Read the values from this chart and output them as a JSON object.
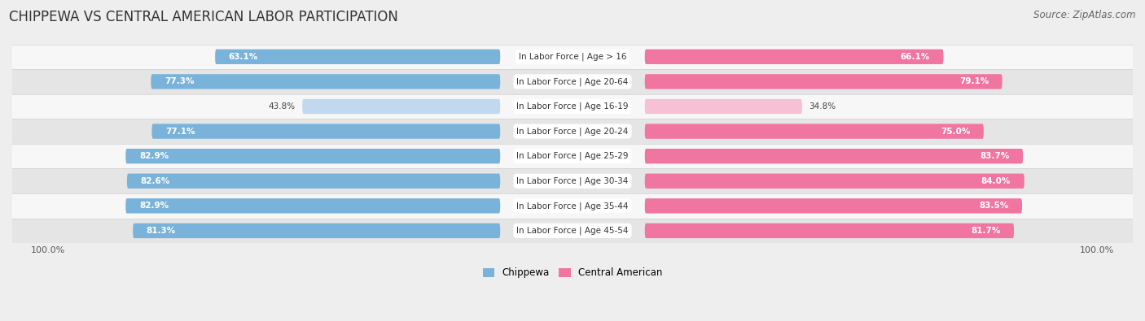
{
  "title": "CHIPPEWA VS CENTRAL AMERICAN LABOR PARTICIPATION",
  "source": "Source: ZipAtlas.com",
  "categories": [
    "In Labor Force | Age > 16",
    "In Labor Force | Age 20-64",
    "In Labor Force | Age 16-19",
    "In Labor Force | Age 20-24",
    "In Labor Force | Age 25-29",
    "In Labor Force | Age 30-34",
    "In Labor Force | Age 35-44",
    "In Labor Force | Age 45-54"
  ],
  "chippewa": [
    63.1,
    77.3,
    43.8,
    77.1,
    82.9,
    82.6,
    82.9,
    81.3
  ],
  "central_american": [
    66.1,
    79.1,
    34.8,
    75.0,
    83.7,
    84.0,
    83.5,
    81.7
  ],
  "chippewa_color": "#7ab3d9",
  "chippewa_color_light": "#c0d9ee",
  "central_american_color": "#f075a0",
  "central_american_color_light": "#f7c0d4",
  "bar_height": 0.6,
  "bg_color": "#eeeeee",
  "row_bg_light": "#f7f7f7",
  "row_bg_dark": "#e5e5e5",
  "label_color_dark": "#444444",
  "label_color_white": "#ffffff",
  "max_value": 100.0,
  "legend_chippewa": "Chippewa",
  "legend_central_american": "Central American",
  "title_fontsize": 12,
  "source_fontsize": 8.5,
  "label_fontsize": 7.5,
  "category_fontsize": 7.5,
  "axis_label_fontsize": 8
}
